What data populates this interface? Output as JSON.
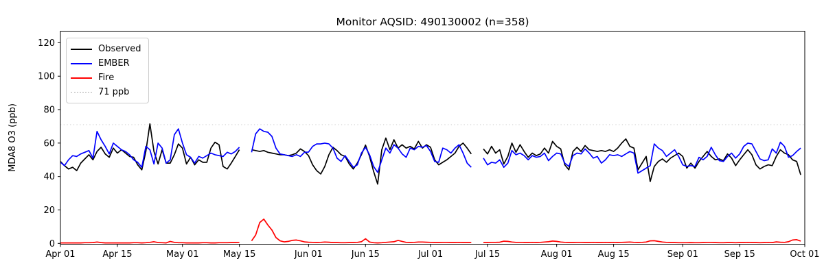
{
  "figure": {
    "title": "Monitor AQSID: 490130002 (n=358)",
    "y_axis_label": "MDA8 O3 (ppb)"
  },
  "legend": {
    "items": [
      {
        "label": "Observed",
        "color": "#000000",
        "dash": "solid"
      },
      {
        "label": "EMBER",
        "color": "#0000ff",
        "dash": "solid"
      },
      {
        "label": "Fire",
        "color": "#ff0000",
        "dash": "solid"
      },
      {
        "label": "71 ppb",
        "color": "#d3d3d3",
        "dash": "dotted"
      }
    ]
  },
  "chart_data": {
    "type": "line",
    "title": "Monitor AQSID: 490130002 (n=358)",
    "xlabel": "",
    "ylabel": "MDA8 O3 (ppb)",
    "x_unit": "daily values, day 0 = Apr 01 through day 182 = Sep 30; axis spans Apr 01 to Oct 01",
    "ylim": [
      0,
      127
    ],
    "yticks": [
      0,
      20,
      40,
      60,
      80,
      100,
      120
    ],
    "xticks": [
      {
        "day": 0,
        "label": "Apr 01"
      },
      {
        "day": 14,
        "label": "Apr 15"
      },
      {
        "day": 30,
        "label": "May 01"
      },
      {
        "day": 44,
        "label": "May 15"
      },
      {
        "day": 61,
        "label": "Jun 01"
      },
      {
        "day": 75,
        "label": "Jun 15"
      },
      {
        "day": 91,
        "label": "Jul 01"
      },
      {
        "day": 105,
        "label": "Jul 15"
      },
      {
        "day": 122,
        "label": "Aug 01"
      },
      {
        "day": 136,
        "label": "Aug 15"
      },
      {
        "day": 153,
        "label": "Sep 01"
      },
      {
        "day": 167,
        "label": "Sep 15"
      },
      {
        "day": 183,
        "label": "Oct 01"
      }
    ],
    "threshold": {
      "value": 71,
      "label": "71 ppb",
      "color": "#d3d3d3",
      "linestyle": "dotted"
    },
    "grid": false,
    "legend_position": "upper left",
    "series": [
      {
        "name": "Observed",
        "color": "#000000",
        "values": [
          49,
          46.5,
          44.5,
          45.5,
          43.5,
          48,
          50.5,
          53,
          50,
          55,
          57.5,
          53.5,
          51.5,
          57,
          54,
          56,
          54,
          52,
          51.5,
          47,
          44,
          55,
          71.5,
          55,
          47.5,
          56,
          48,
          48,
          53,
          59.5,
          57,
          47.5,
          51.5,
          47,
          50,
          48.5,
          48.5,
          57,
          60.5,
          59,
          46,
          44.5,
          48,
          52,
          56,
          null,
          null,
          56,
          55.5,
          55,
          55.5,
          54.5,
          54,
          53.5,
          53,
          53,
          52.5,
          53,
          54,
          56.5,
          55,
          52.5,
          47,
          43.5,
          41.5,
          46,
          53,
          57.5,
          55.5,
          53,
          52,
          47.5,
          44.5,
          48,
          53,
          58.8,
          52,
          43,
          35.5,
          56,
          63,
          56,
          62,
          57,
          59,
          57,
          58,
          56.5,
          61,
          57,
          59,
          57.5,
          50,
          47,
          48.5,
          50,
          52,
          54,
          58,
          60,
          57,
          53.5,
          null,
          null,
          56.5,
          53.5,
          58,
          54,
          56,
          47.5,
          52,
          60,
          54.5,
          59,
          55,
          51.5,
          54,
          52.5,
          53.5,
          57,
          54,
          61,
          58,
          56.5,
          47,
          44,
          55,
          57.5,
          55,
          58.5,
          56,
          55.5,
          55,
          55.5,
          55,
          56,
          55,
          57,
          60,
          62.5,
          58,
          57,
          44,
          48,
          52,
          37,
          46,
          49,
          50.5,
          48.5,
          51,
          52.5,
          54,
          52,
          45,
          48,
          45,
          49,
          52,
          55,
          52,
          50,
          50.5,
          49.5,
          53.5,
          51,
          46.5,
          50,
          53,
          56,
          53,
          47,
          44.5,
          46,
          47,
          46.5,
          52,
          56,
          54,
          53,
          50,
          49,
          41
        ]
      },
      {
        "name": "EMBER",
        "color": "#0000ff",
        "values": [
          48.5,
          46.5,
          50,
          52.5,
          52,
          53.5,
          54.5,
          55.5,
          51,
          67,
          62,
          58,
          53.5,
          60,
          58,
          56,
          55,
          53,
          50,
          48.5,
          45.5,
          58,
          56,
          47.5,
          60,
          57,
          48,
          50,
          65,
          68.5,
          60,
          53,
          51.5,
          48,
          52,
          51,
          52.5,
          54,
          53,
          52.5,
          52,
          54.5,
          53.5,
          55,
          57.5,
          null,
          null,
          54.5,
          65.5,
          68.5,
          67,
          66.5,
          64,
          57,
          53.5,
          53,
          52.5,
          52,
          53,
          52,
          54.5,
          54.6,
          58,
          59.5,
          59.5,
          60,
          59.5,
          57,
          51,
          49,
          52.5,
          49,
          45.5,
          47,
          54,
          57.5,
          53,
          46,
          42.5,
          50,
          57,
          54,
          59,
          57,
          53.5,
          51.5,
          57,
          56,
          58,
          57.5,
          58.5,
          55,
          49,
          48.5,
          57,
          56,
          54,
          57,
          59,
          54,
          48,
          45.5,
          null,
          null,
          51,
          47,
          48.5,
          48,
          50,
          45.5,
          48,
          55.5,
          53,
          54,
          52.5,
          50,
          52.5,
          51.5,
          52,
          54,
          49.5,
          52,
          54,
          53.5,
          48,
          46,
          52.5,
          54,
          53.5,
          56.5,
          54,
          51,
          52,
          48,
          50,
          53,
          52.5,
          53,
          52,
          53.5,
          55,
          54,
          42,
          43.5,
          45,
          46.5,
          59.5,
          57,
          55.5,
          52,
          54,
          56,
          52,
          47,
          46,
          46.5,
          46,
          51.5,
          50,
          52,
          57.5,
          53,
          49.5,
          49,
          52,
          54,
          51,
          53.5,
          58,
          60,
          59.5,
          55,
          50.5,
          49.5,
          50,
          56.5,
          54,
          60.5,
          58,
          51.5,
          52.5,
          55,
          57
        ]
      },
      {
        "name": "Fire",
        "color": "#ff0000",
        "values": [
          0.3,
          0.3,
          0.3,
          0.3,
          0.3,
          0.3,
          0.4,
          0.4,
          0.5,
          0.8,
          0.5,
          0.3,
          0.3,
          0.3,
          0.3,
          0.3,
          0.3,
          0.3,
          0.4,
          0.4,
          0.3,
          0.4,
          0.6,
          1.0,
          0.5,
          0.4,
          0.3,
          1.2,
          0.6,
          0.4,
          0.4,
          0.3,
          0.3,
          0.3,
          0.3,
          0.4,
          0.4,
          0.3,
          0.3,
          0.4,
          0.4,
          0.4,
          0.5,
          0.5,
          0.6,
          null,
          null,
          1.5,
          5,
          12.5,
          14.5,
          11,
          8,
          3.5,
          1.5,
          0.9,
          1.2,
          1.8,
          2.0,
          1.5,
          0.9,
          0.7,
          0.6,
          0.5,
          0.6,
          0.8,
          0.7,
          0.5,
          0.5,
          0.4,
          0.4,
          0.5,
          0.5,
          0.6,
          1.0,
          2.8,
          0.8,
          0.4,
          0.3,
          0.4,
          0.6,
          0.8,
          1.0,
          1.8,
          1.2,
          0.6,
          0.5,
          0.6,
          0.8,
          0.8,
          0.7,
          0.6,
          0.5,
          0.5,
          0.6,
          0.6,
          0.5,
          0.5,
          0.6,
          0.5,
          0.5,
          0.5,
          null,
          null,
          0.5,
          0.5,
          0.6,
          0.6,
          0.7,
          1.3,
          1.2,
          0.8,
          0.6,
          0.6,
          0.5,
          0.5,
          0.6,
          0.5,
          0.6,
          0.8,
          1.0,
          1.4,
          1.2,
          0.8,
          0.6,
          0.5,
          0.5,
          0.6,
          0.6,
          0.5,
          0.5,
          0.6,
          0.5,
          0.5,
          0.6,
          0.5,
          0.6,
          0.5,
          0.6,
          0.7,
          0.8,
          0.6,
          0.5,
          0.6,
          0.8,
          1.5,
          1.6,
          1.2,
          0.8,
          0.6,
          0.5,
          0.5,
          0.4,
          0.4,
          0.4,
          0.5,
          0.4,
          0.4,
          0.5,
          0.6,
          0.6,
          0.5,
          0.4,
          0.4,
          0.5,
          0.5,
          0.4,
          0.5,
          0.5,
          0.6,
          0.5,
          0.5,
          0.4,
          0.5,
          0.6,
          0.5,
          0.9,
          0.7,
          0.6,
          1.0,
          2.0,
          2.2,
          1.4
        ]
      }
    ]
  }
}
